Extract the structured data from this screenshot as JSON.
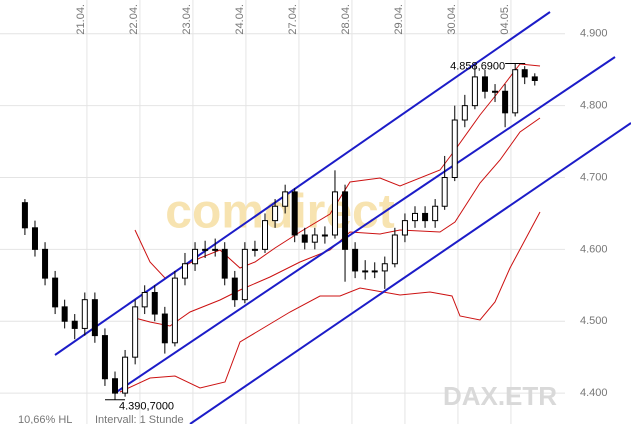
{
  "chart_data": {
    "type": "candlestick",
    "watermark": "comdirect",
    "instrument": "DAX.ETR",
    "footer": [
      "10,66% HL",
      "Intervall: 1 Stunde"
    ],
    "annotations": [
      {
        "text": "4.858,6900",
        "value": 4858.69
      },
      {
        "text": "4.390,7000",
        "value": 4390.7
      }
    ],
    "x": [
      -0.17,
      0.02,
      0.21,
      0.4,
      0.58,
      0.77,
      0.96,
      1.15,
      1.34,
      1.53,
      1.72,
      1.91,
      2.09,
      2.28,
      2.47,
      2.66,
      2.85,
      3.04,
      3.23,
      3.42,
      3.6,
      3.79,
      3.98,
      4.17,
      4.36,
      4.55,
      4.74,
      4.92,
      5.11,
      5.3,
      5.49,
      5.68,
      5.87,
      6.06,
      6.25,
      6.43,
      6.62,
      6.81,
      7.0,
      7.19,
      7.38,
      7.57,
      7.75,
      7.94,
      8.13,
      8.32,
      8.51,
      8.7,
      8.89,
      9.08,
      9.26,
      9.45
    ],
    "open": [
      4665,
      4630,
      4600,
      4560,
      4520,
      4500,
      4490,
      4530,
      4480,
      4420,
      4400,
      4450,
      4520,
      4540,
      4510,
      4470,
      4560,
      4580,
      4600,
      4600,
      4600,
      4560,
      4530,
      4600,
      4600,
      4640,
      4660,
      4680,
      4620,
      4610,
      4620,
      4620,
      4680,
      4600,
      4570,
      4570,
      4570,
      4580,
      4620,
      4640,
      4650,
      4640,
      4660,
      4700,
      4780,
      4800,
      4840,
      4820,
      4820,
      4790,
      4850,
      4840
    ],
    "high": [
      4670,
      4640,
      4610,
      4570,
      4530,
      4510,
      4540,
      4540,
      4490,
      4430,
      4460,
      4530,
      4550,
      4550,
      4520,
      4570,
      4595,
      4610,
      4612,
      4615,
      4610,
      4570,
      4610,
      4612,
      4650,
      4670,
      4690,
      4685,
      4630,
      4630,
      4632,
      4710,
      4690,
      4610,
      4585,
      4582,
      4590,
      4630,
      4650,
      4660,
      4660,
      4670,
      4730,
      4800,
      4815,
      4856,
      4850,
      4830,
      4830,
      4858.69,
      4855,
      4845
    ],
    "low": [
      4620,
      4590,
      4550,
      4510,
      4490,
      4475,
      4480,
      4470,
      4410,
      4390.7,
      4395,
      4440,
      4510,
      4500,
      4455,
      4465,
      4550,
      4570,
      4588,
      4590,
      4550,
      4520,
      4525,
      4590,
      4595,
      4630,
      4650,
      4610,
      4600,
      4600,
      4608,
      4615,
      4555,
      4560,
      4558,
      4560,
      4545,
      4575,
      4610,
      4630,
      4630,
      4630,
      4655,
      4695,
      4770,
      4795,
      4810,
      4805,
      4770,
      4785,
      4830,
      4828
    ],
    "close": [
      4630,
      4600,
      4560,
      4520,
      4500,
      4490,
      4530,
      4480,
      4420,
      4400,
      4450,
      4520,
      4540,
      4510,
      4470,
      4560,
      4580,
      4600,
      4600,
      4600,
      4560,
      4530,
      4600,
      4600,
      4640,
      4660,
      4680,
      4620,
      4610,
      4620,
      4620,
      4680,
      4600,
      4570,
      4570,
      4570,
      4580,
      4620,
      4640,
      4650,
      4640,
      4660,
      4700,
      4780,
      4800,
      4840,
      4820,
      4820,
      4790,
      4850,
      4840,
      4835
    ],
    "up_color": "#ffffff",
    "down_color": "#000000",
    "xlim": [
      -0.64,
      10.02
    ],
    "xticks": [
      {
        "value": 1,
        "label": "21.04."
      },
      {
        "value": 2,
        "label": "22.04."
      },
      {
        "value": 3,
        "label": "23.04."
      },
      {
        "value": 4,
        "label": "24.04."
      },
      {
        "value": 5,
        "label": "27.04."
      },
      {
        "value": 6,
        "label": "28.04."
      },
      {
        "value": 7,
        "label": "29.04."
      },
      {
        "value": 8,
        "label": "30.04."
      },
      {
        "value": 9,
        "label": "04.05."
      }
    ],
    "ylim": [
      4357,
      4947
    ],
    "yticks": [
      {
        "value": 4400,
        "label": "4.400"
      },
      {
        "value": 4500,
        "label": "4.500"
      },
      {
        "value": 4600,
        "label": "4.600"
      },
      {
        "value": 4700,
        "label": "4.700"
      },
      {
        "value": 4800,
        "label": "4.800"
      },
      {
        "value": 4900,
        "label": "4.900"
      }
    ],
    "grid": true
  }
}
